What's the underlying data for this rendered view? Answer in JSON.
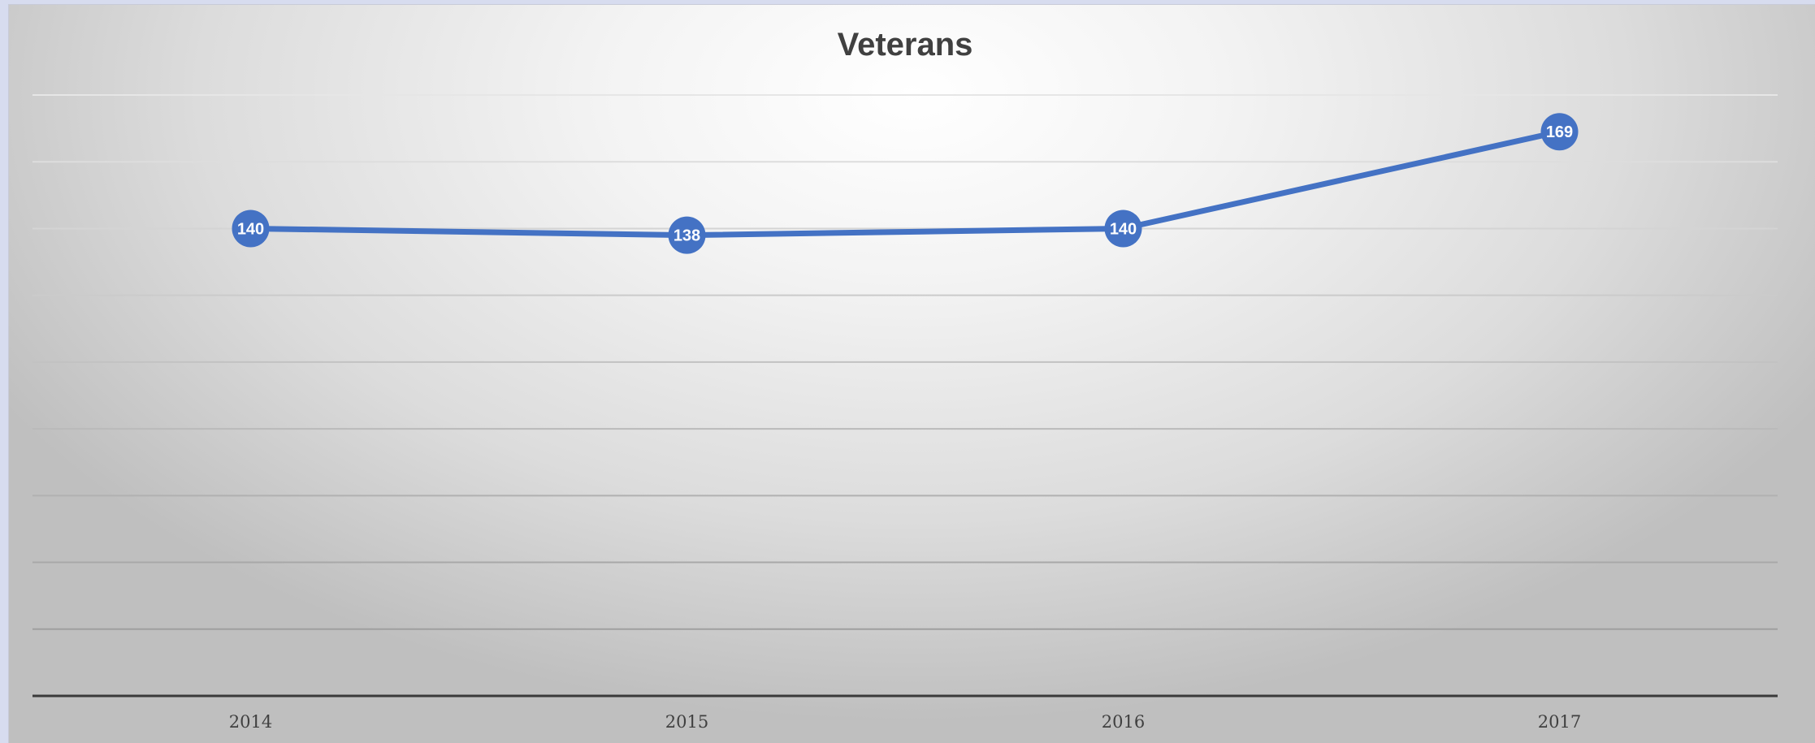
{
  "chart_data": {
    "type": "line",
    "title": "Veterans",
    "xlabel": "",
    "ylabel": "",
    "categories": [
      "2014",
      "2015",
      "2016",
      "2017"
    ],
    "series": [
      {
        "values": [
          140,
          138,
          140,
          169
        ],
        "color": "#4472c4"
      }
    ],
    "ylim": [
      0,
      180
    ],
    "y_gridline_step": 20,
    "grid": true,
    "y_axis_labels_visible": false,
    "data_labels": true,
    "legend": "none"
  }
}
